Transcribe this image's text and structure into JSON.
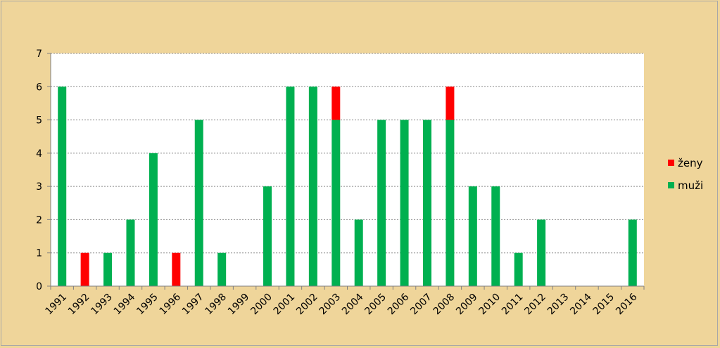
{
  "chart_data": {
    "type": "bar",
    "stacked": true,
    "categories": [
      "1991",
      "1992",
      "1993",
      "1994",
      "1995",
      "1996",
      "1997",
      "1998",
      "1999",
      "2000",
      "2001",
      "2002",
      "2003",
      "2004",
      "2005",
      "2006",
      "2007",
      "2008",
      "2009",
      "2010",
      "2011",
      "2012",
      "2013",
      "2014",
      "2015",
      "2016"
    ],
    "series": [
      {
        "name": "muži",
        "color": "#00b050",
        "values": [
          6,
          0,
          1,
          2,
          4,
          0,
          5,
          1,
          0,
          3,
          6,
          6,
          5,
          2,
          5,
          5,
          5,
          5,
          3,
          3,
          1,
          2,
          0,
          0,
          0,
          2
        ]
      },
      {
        "name": "ženy",
        "color": "#ff0000",
        "values": [
          0,
          1,
          0,
          0,
          0,
          1,
          0,
          0,
          0,
          0,
          0,
          0,
          1,
          0,
          0,
          0,
          0,
          1,
          0,
          0,
          0,
          0,
          0,
          0,
          0,
          0
        ]
      }
    ],
    "ylim": [
      0,
      7
    ],
    "yticks": [
      "0",
      "1",
      "2",
      "3",
      "4",
      "5",
      "6",
      "7"
    ],
    "grid": true,
    "legend_position": "right",
    "legend_order": [
      "ženy",
      "muži"
    ],
    "title": "",
    "xlabel": "",
    "ylabel": ""
  }
}
